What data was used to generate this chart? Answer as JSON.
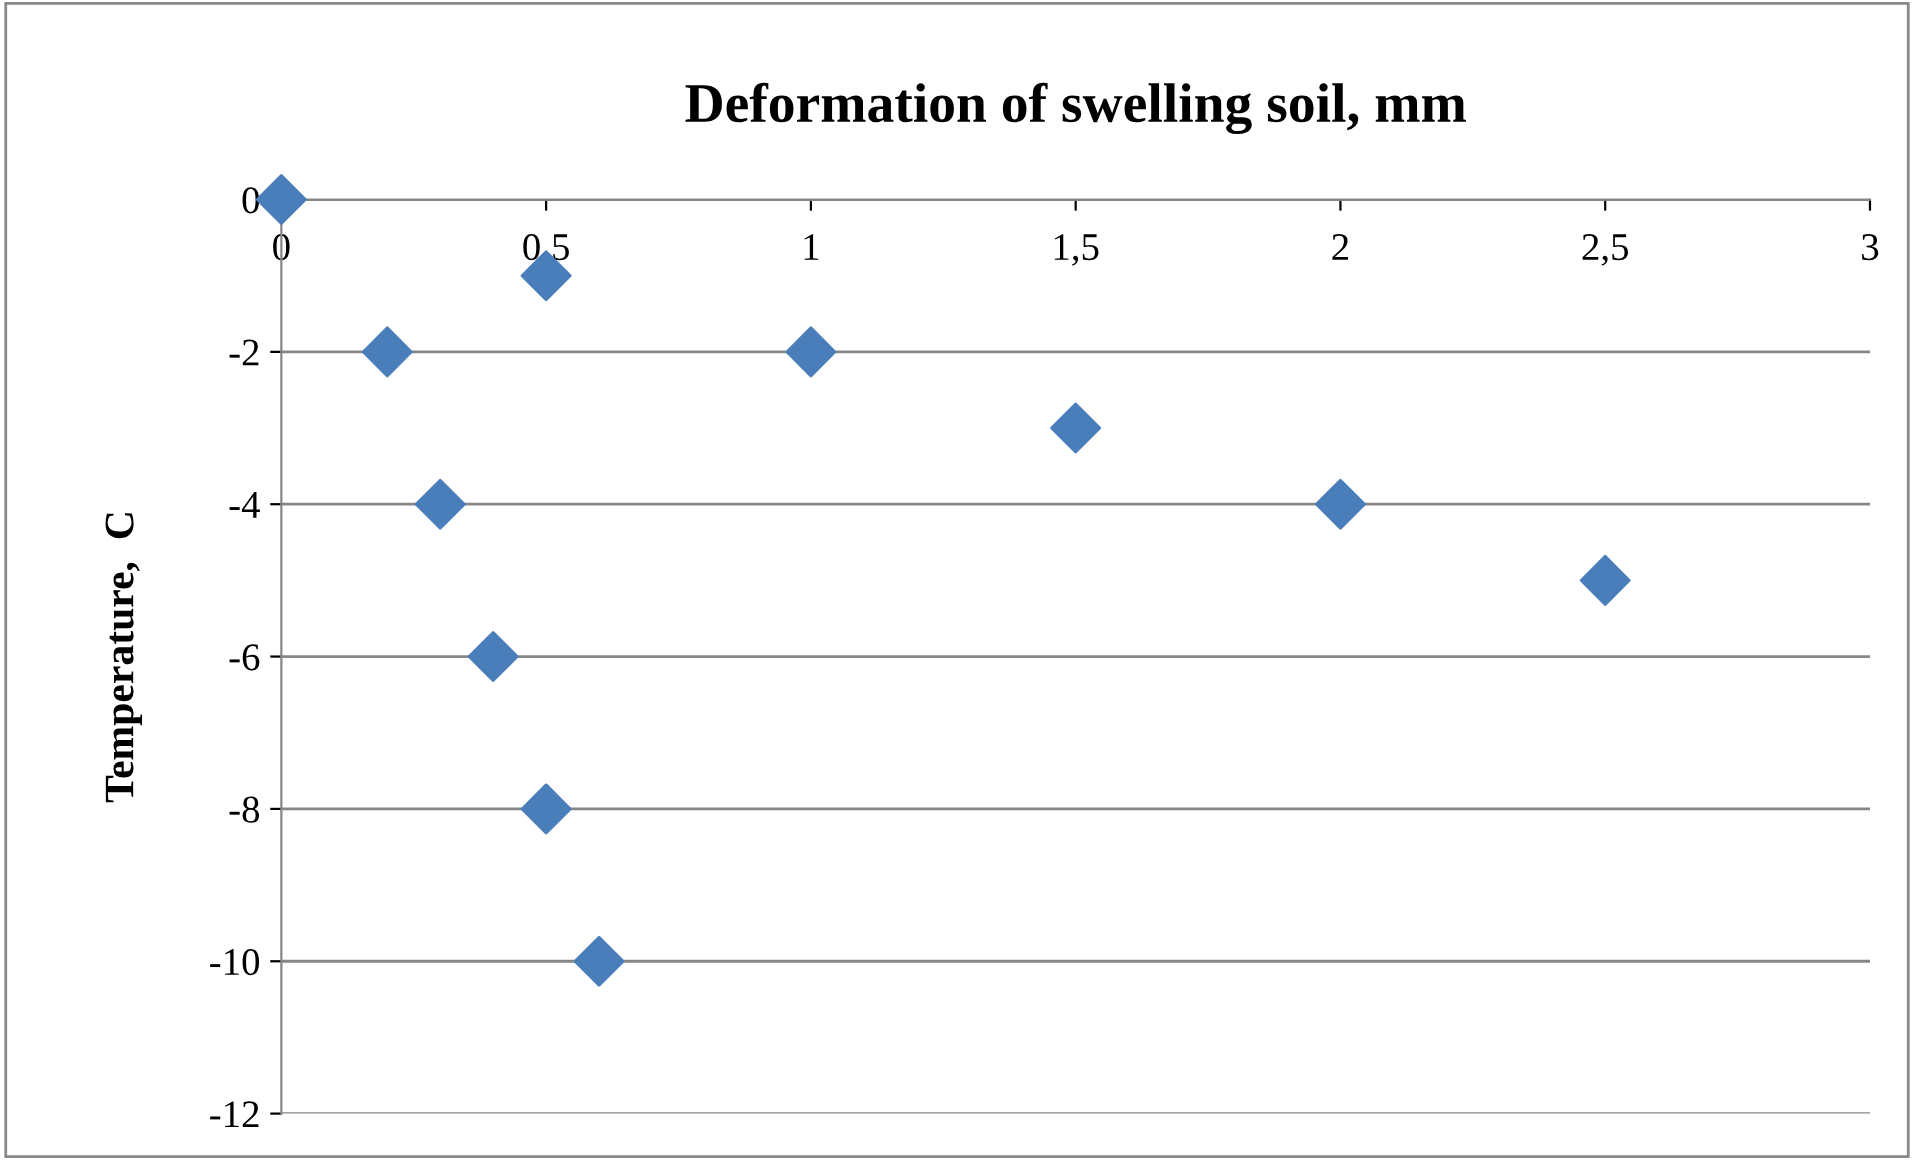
{
  "chart_data": {
    "type": "scatter",
    "title": "Deformation of swelling soil, mm",
    "ylabel": "Temperature,  C",
    "x": [
      0,
      0.5,
      0.2,
      1,
      0.3,
      1.5,
      0.4,
      2,
      0.5,
      2.5,
      0.6
    ],
    "values": [
      0,
      -1,
      -2,
      -2,
      -4,
      -3,
      -6,
      -4,
      -8,
      -5,
      -10
    ],
    "color": "#4a7ebb",
    "marker": "diamond",
    "xlim": [
      0,
      3
    ],
    "xticks": [
      0,
      {
        "value": 0.5,
        "label": "0,5"
      },
      1,
      {
        "value": 1.5,
        "label": "1,5"
      },
      2,
      {
        "value": 2.5,
        "label": "2,5"
      },
      3
    ],
    "ylim": [
      -12,
      0
    ],
    "yticks": [
      -12,
      -10,
      -8,
      -6,
      -4,
      -2,
      0
    ],
    "grid": "y"
  }
}
